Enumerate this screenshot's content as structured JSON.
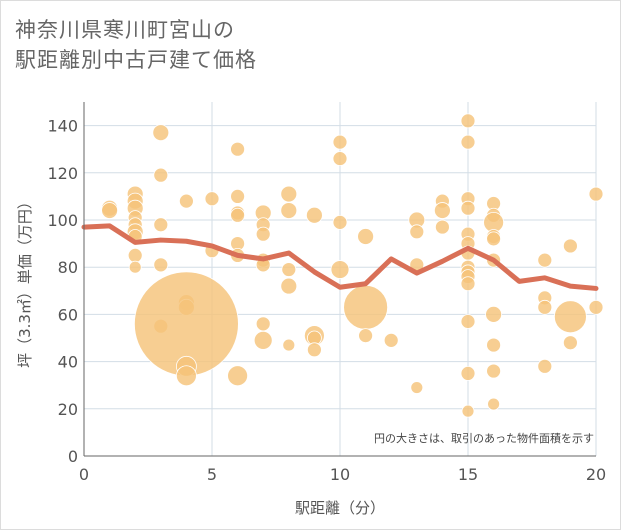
{
  "title_lines": [
    "神奈川県寒川町宮山の",
    "駅距離別中古戸建て価格"
  ],
  "chart_data": {
    "type": "scatter",
    "xlabel": "駅距離（分）",
    "ylabel": "坪（3.3㎡）単価（万円）",
    "xlim": [
      0,
      20
    ],
    "ylim": [
      0,
      150
    ],
    "xticks": [
      0,
      5,
      10,
      15,
      20
    ],
    "yticks": [
      0,
      20,
      40,
      60,
      80,
      100,
      120,
      140
    ],
    "grid": true,
    "note": "円の大きさは、取引のあった物件面積を示す",
    "bubble_color": "#f5c37a",
    "line_color": "#d97057",
    "points": [
      {
        "x": 1,
        "y": 105,
        "s": 8
      },
      {
        "x": 1,
        "y": 104,
        "s": 8
      },
      {
        "x": 2,
        "y": 111,
        "s": 8
      },
      {
        "x": 2,
        "y": 108,
        "s": 8
      },
      {
        "x": 2,
        "y": 105,
        "s": 8
      },
      {
        "x": 2,
        "y": 101,
        "s": 7
      },
      {
        "x": 2,
        "y": 98,
        "s": 7
      },
      {
        "x": 2,
        "y": 95,
        "s": 8
      },
      {
        "x": 2,
        "y": 93,
        "s": 7
      },
      {
        "x": 2,
        "y": 85,
        "s": 7
      },
      {
        "x": 2,
        "y": 80,
        "s": 6
      },
      {
        "x": 3,
        "y": 137,
        "s": 8
      },
      {
        "x": 3,
        "y": 119,
        "s": 7
      },
      {
        "x": 3,
        "y": 98,
        "s": 7
      },
      {
        "x": 3,
        "y": 81,
        "s": 7
      },
      {
        "x": 3,
        "y": 55,
        "s": 7
      },
      {
        "x": 4,
        "y": 108,
        "s": 7
      },
      {
        "x": 4,
        "y": 65,
        "s": 8
      },
      {
        "x": 4,
        "y": 63,
        "s": 8
      },
      {
        "x": 4,
        "y": 56,
        "s": 52
      },
      {
        "x": 4,
        "y": 38,
        "s": 10
      },
      {
        "x": 4,
        "y": 34,
        "s": 10
      },
      {
        "x": 5,
        "y": 109,
        "s": 7
      },
      {
        "x": 5,
        "y": 87,
        "s": 7
      },
      {
        "x": 6,
        "y": 130,
        "s": 7
      },
      {
        "x": 6,
        "y": 110,
        "s": 7
      },
      {
        "x": 6,
        "y": 103,
        "s": 7
      },
      {
        "x": 6,
        "y": 102,
        "s": 7
      },
      {
        "x": 6,
        "y": 90,
        "s": 7
      },
      {
        "x": 6,
        "y": 85,
        "s": 7
      },
      {
        "x": 6,
        "y": 34,
        "s": 10
      },
      {
        "x": 7,
        "y": 103,
        "s": 8
      },
      {
        "x": 7,
        "y": 98,
        "s": 7
      },
      {
        "x": 7,
        "y": 94,
        "s": 7
      },
      {
        "x": 7,
        "y": 83,
        "s": 7
      },
      {
        "x": 7,
        "y": 81,
        "s": 7
      },
      {
        "x": 7,
        "y": 56,
        "s": 7
      },
      {
        "x": 7,
        "y": 49,
        "s": 9
      },
      {
        "x": 8,
        "y": 111,
        "s": 8
      },
      {
        "x": 8,
        "y": 104,
        "s": 8
      },
      {
        "x": 8,
        "y": 79,
        "s": 7
      },
      {
        "x": 8,
        "y": 72,
        "s": 8
      },
      {
        "x": 8,
        "y": 47,
        "s": 6
      },
      {
        "x": 9,
        "y": 102,
        "s": 8
      },
      {
        "x": 9,
        "y": 51,
        "s": 10
      },
      {
        "x": 9,
        "y": 50,
        "s": 7
      },
      {
        "x": 9,
        "y": 45,
        "s": 7
      },
      {
        "x": 10,
        "y": 133,
        "s": 7
      },
      {
        "x": 10,
        "y": 126,
        "s": 7
      },
      {
        "x": 10,
        "y": 99,
        "s": 7
      },
      {
        "x": 10,
        "y": 79,
        "s": 9
      },
      {
        "x": 11,
        "y": 93,
        "s": 8
      },
      {
        "x": 11,
        "y": 63,
        "s": 22
      },
      {
        "x": 11,
        "y": 51,
        "s": 7
      },
      {
        "x": 12,
        "y": 49,
        "s": 7
      },
      {
        "x": 13,
        "y": 100,
        "s": 8
      },
      {
        "x": 13,
        "y": 95,
        "s": 7
      },
      {
        "x": 13,
        "y": 81,
        "s": 7
      },
      {
        "x": 13,
        "y": 29,
        "s": 6
      },
      {
        "x": 14,
        "y": 108,
        "s": 7
      },
      {
        "x": 14,
        "y": 104,
        "s": 8
      },
      {
        "x": 14,
        "y": 97,
        "s": 7
      },
      {
        "x": 15,
        "y": 142,
        "s": 7
      },
      {
        "x": 15,
        "y": 133,
        "s": 7
      },
      {
        "x": 15,
        "y": 109,
        "s": 7
      },
      {
        "x": 15,
        "y": 105,
        "s": 7
      },
      {
        "x": 15,
        "y": 94,
        "s": 7
      },
      {
        "x": 15,
        "y": 90,
        "s": 7
      },
      {
        "x": 15,
        "y": 86,
        "s": 7
      },
      {
        "x": 15,
        "y": 80,
        "s": 7
      },
      {
        "x": 15,
        "y": 78,
        "s": 7
      },
      {
        "x": 15,
        "y": 76,
        "s": 7
      },
      {
        "x": 15,
        "y": 73,
        "s": 7
      },
      {
        "x": 15,
        "y": 57,
        "s": 7
      },
      {
        "x": 15,
        "y": 35,
        "s": 7
      },
      {
        "x": 15,
        "y": 19,
        "s": 6
      },
      {
        "x": 16,
        "y": 107,
        "s": 7
      },
      {
        "x": 16,
        "y": 102,
        "s": 7
      },
      {
        "x": 16,
        "y": 99,
        "s": 10
      },
      {
        "x": 16,
        "y": 93,
        "s": 7
      },
      {
        "x": 16,
        "y": 92,
        "s": 7
      },
      {
        "x": 16,
        "y": 83,
        "s": 7
      },
      {
        "x": 16,
        "y": 60,
        "s": 8
      },
      {
        "x": 16,
        "y": 47,
        "s": 7
      },
      {
        "x": 16,
        "y": 36,
        "s": 7
      },
      {
        "x": 16,
        "y": 22,
        "s": 6
      },
      {
        "x": 18,
        "y": 83,
        "s": 7
      },
      {
        "x": 18,
        "y": 67,
        "s": 7
      },
      {
        "x": 18,
        "y": 63,
        "s": 7
      },
      {
        "x": 18,
        "y": 38,
        "s": 7
      },
      {
        "x": 19,
        "y": 89,
        "s": 7
      },
      {
        "x": 19,
        "y": 59,
        "s": 16
      },
      {
        "x": 19,
        "y": 48,
        "s": 7
      },
      {
        "x": 20,
        "y": 111,
        "s": 7
      },
      {
        "x": 20,
        "y": 63,
        "s": 7
      }
    ],
    "trend": {
      "x": [
        0,
        1,
        2,
        3,
        4,
        5,
        6,
        7,
        8,
        9,
        10,
        11,
        12,
        13,
        14,
        15,
        16,
        17,
        18,
        19,
        20
      ],
      "y": [
        97,
        97.5,
        90.5,
        91.5,
        91,
        89,
        85,
        83.5,
        86,
        78,
        71.5,
        73,
        83.5,
        77.5,
        82.5,
        88,
        83,
        74,
        75.5,
        72,
        71
      ]
    }
  }
}
